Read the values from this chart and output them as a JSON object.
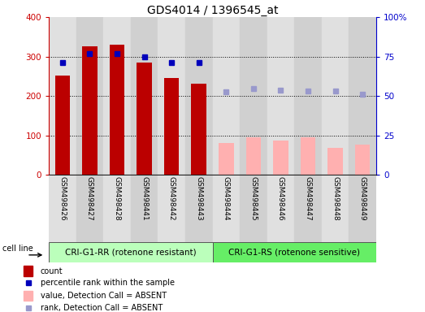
{
  "title": "GDS4014 / 1396545_at",
  "samples": [
    "GSM498426",
    "GSM498427",
    "GSM498428",
    "GSM498441",
    "GSM498442",
    "GSM498443",
    "GSM498444",
    "GSM498445",
    "GSM498446",
    "GSM498447",
    "GSM498448",
    "GSM498449"
  ],
  "group1_count": 6,
  "group2_count": 6,
  "group1_label": "CRI-G1-RR (rotenone resistant)",
  "group2_label": "CRI-G1-RS (rotenone sensitive)",
  "cell_line_label": "cell line",
  "bar_values": [
    251,
    325,
    330,
    285,
    246,
    232,
    null,
    null,
    null,
    null,
    null,
    null
  ],
  "bar_values_absent": [
    null,
    null,
    null,
    null,
    null,
    null,
    80,
    95,
    87,
    95,
    68,
    77
  ],
  "rank_values": [
    285,
    308,
    308,
    300,
    285,
    285,
    null,
    null,
    null,
    null,
    null,
    null
  ],
  "rank_values_absent": [
    null,
    null,
    null,
    null,
    null,
    null,
    210,
    218,
    215,
    213,
    212,
    205
  ],
  "left_ylim": [
    0,
    400
  ],
  "right_ylim": [
    0,
    100
  ],
  "left_yticks": [
    0,
    100,
    200,
    300,
    400
  ],
  "right_yticks": [
    0,
    25,
    50,
    75,
    100
  ],
  "right_yticklabels": [
    "0",
    "25",
    "50",
    "75",
    "100%"
  ],
  "left_color": "#cc0000",
  "right_color": "#0000cc",
  "bar_color_present": "#bb0000",
  "bar_color_absent": "#ffb0b0",
  "rank_color_present": "#0000bb",
  "rank_color_absent": "#9999cc",
  "col_bg_even": "#e0e0e0",
  "col_bg_odd": "#d0d0d0",
  "group1_bg": "#bbffbb",
  "group2_bg": "#66ee66",
  "bar_width": 0.55,
  "rank_marker_size": 5,
  "legend_items": [
    {
      "label": "count",
      "color": "#bb0000",
      "type": "bar"
    },
    {
      "label": "percentile rank within the sample",
      "color": "#0000bb",
      "type": "square"
    },
    {
      "label": "value, Detection Call = ABSENT",
      "color": "#ffb0b0",
      "type": "bar"
    },
    {
      "label": "rank, Detection Call = ABSENT",
      "color": "#9999cc",
      "type": "square"
    }
  ]
}
